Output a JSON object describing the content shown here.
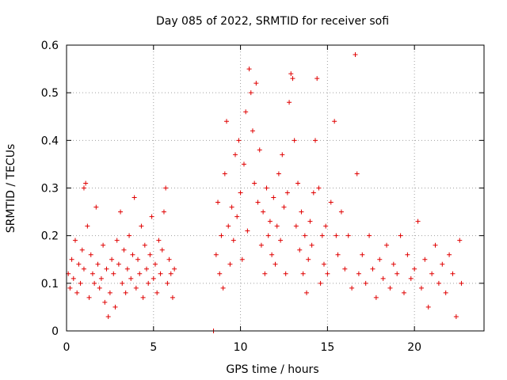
{
  "chart_data": {
    "type": "scatter",
    "title": "Day 085 of 2022, SRMTID for receiver sofi",
    "xlabel": "GPS time / hours",
    "ylabel": "SRMTID / TECUs",
    "xlim": [
      0,
      24
    ],
    "ylim": [
      0,
      0.6
    ],
    "xticks": [
      0,
      5,
      10,
      15,
      20
    ],
    "xtick_labels": [
      "0",
      "5",
      "10",
      "15",
      "20"
    ],
    "yticks": [
      0,
      0.1,
      0.2,
      0.3,
      0.4,
      0.5,
      0.6
    ],
    "ytick_labels": [
      "0",
      "0.1",
      "0.2",
      "0.3",
      "0.4",
      "0.5",
      "0.6"
    ],
    "grid": true,
    "marker": "+",
    "color": "#e00000",
    "series": [
      {
        "name": "SRMTID",
        "points": [
          [
            0.1,
            0.12
          ],
          [
            0.2,
            0.09
          ],
          [
            0.3,
            0.15
          ],
          [
            0.4,
            0.11
          ],
          [
            0.5,
            0.19
          ],
          [
            0.6,
            0.08
          ],
          [
            0.7,
            0.14
          ],
          [
            0.8,
            0.1
          ],
          [
            0.9,
            0.17
          ],
          [
            1.0,
            0.13
          ],
          [
            1.0,
            0.3
          ],
          [
            1.1,
            0.31
          ],
          [
            1.2,
            0.22
          ],
          [
            1.3,
            0.07
          ],
          [
            1.4,
            0.16
          ],
          [
            1.5,
            0.12
          ],
          [
            1.6,
            0.1
          ],
          [
            1.7,
            0.26
          ],
          [
            1.8,
            0.14
          ],
          [
            1.9,
            0.09
          ],
          [
            2.0,
            0.11
          ],
          [
            2.1,
            0.18
          ],
          [
            2.2,
            0.06
          ],
          [
            2.3,
            0.13
          ],
          [
            2.4,
            0.03
          ],
          [
            2.5,
            0.08
          ],
          [
            2.6,
            0.15
          ],
          [
            2.7,
            0.12
          ],
          [
            2.8,
            0.05
          ],
          [
            2.9,
            0.19
          ],
          [
            3.0,
            0.14
          ],
          [
            3.1,
            0.25
          ],
          [
            3.2,
            0.1
          ],
          [
            3.3,
            0.17
          ],
          [
            3.4,
            0.08
          ],
          [
            3.5,
            0.13
          ],
          [
            3.6,
            0.2
          ],
          [
            3.7,
            0.11
          ],
          [
            3.8,
            0.16
          ],
          [
            3.9,
            0.28
          ],
          [
            4.0,
            0.09
          ],
          [
            4.1,
            0.15
          ],
          [
            4.2,
            0.12
          ],
          [
            4.3,
            0.22
          ],
          [
            4.4,
            0.07
          ],
          [
            4.5,
            0.18
          ],
          [
            4.6,
            0.13
          ],
          [
            4.7,
            0.1
          ],
          [
            4.8,
            0.16
          ],
          [
            4.9,
            0.24
          ],
          [
            5.0,
            0.11
          ],
          [
            5.1,
            0.14
          ],
          [
            5.2,
            0.08
          ],
          [
            5.3,
            0.19
          ],
          [
            5.4,
            0.12
          ],
          [
            5.5,
            0.17
          ],
          [
            5.6,
            0.25
          ],
          [
            5.7,
            0.3
          ],
          [
            5.8,
            0.1
          ],
          [
            5.9,
            0.15
          ],
          [
            6.0,
            0.12
          ],
          [
            6.1,
            0.07
          ],
          [
            6.2,
            0.13
          ],
          [
            8.45,
            0.0
          ],
          [
            8.6,
            0.16
          ],
          [
            8.7,
            0.27
          ],
          [
            8.8,
            0.12
          ],
          [
            8.9,
            0.2
          ],
          [
            9.0,
            0.09
          ],
          [
            9.1,
            0.33
          ],
          [
            9.2,
            0.44
          ],
          [
            9.3,
            0.22
          ],
          [
            9.4,
            0.14
          ],
          [
            9.5,
            0.26
          ],
          [
            9.6,
            0.19
          ],
          [
            9.7,
            0.37
          ],
          [
            9.8,
            0.24
          ],
          [
            9.9,
            0.4
          ],
          [
            10.0,
            0.29
          ],
          [
            10.1,
            0.15
          ],
          [
            10.2,
            0.35
          ],
          [
            10.3,
            0.46
          ],
          [
            10.4,
            0.21
          ],
          [
            10.5,
            0.55
          ],
          [
            10.6,
            0.5
          ],
          [
            10.7,
            0.42
          ],
          [
            10.8,
            0.31
          ],
          [
            10.9,
            0.52
          ],
          [
            11.0,
            0.27
          ],
          [
            11.1,
            0.38
          ],
          [
            11.2,
            0.18
          ],
          [
            11.3,
            0.25
          ],
          [
            11.4,
            0.12
          ],
          [
            11.5,
            0.3
          ],
          [
            11.6,
            0.2
          ],
          [
            11.7,
            0.23
          ],
          [
            11.8,
            0.16
          ],
          [
            11.9,
            0.28
          ],
          [
            12.0,
            0.14
          ],
          [
            12.1,
            0.22
          ],
          [
            12.2,
            0.33
          ],
          [
            12.3,
            0.19
          ],
          [
            12.4,
            0.37
          ],
          [
            12.5,
            0.26
          ],
          [
            12.6,
            0.12
          ],
          [
            12.7,
            0.29
          ],
          [
            12.8,
            0.48
          ],
          [
            12.9,
            0.54
          ],
          [
            13.0,
            0.53
          ],
          [
            13.1,
            0.4
          ],
          [
            13.2,
            0.22
          ],
          [
            13.3,
            0.31
          ],
          [
            13.4,
            0.17
          ],
          [
            13.5,
            0.25
          ],
          [
            13.6,
            0.12
          ],
          [
            13.7,
            0.2
          ],
          [
            13.8,
            0.08
          ],
          [
            13.9,
            0.15
          ],
          [
            14.0,
            0.23
          ],
          [
            14.1,
            0.18
          ],
          [
            14.2,
            0.29
          ],
          [
            14.3,
            0.4
          ],
          [
            14.4,
            0.53
          ],
          [
            14.5,
            0.3
          ],
          [
            14.6,
            0.1
          ],
          [
            14.7,
            0.2
          ],
          [
            14.8,
            0.14
          ],
          [
            14.9,
            0.22
          ],
          [
            15.0,
            0.12
          ],
          [
            15.2,
            0.27
          ],
          [
            15.4,
            0.44
          ],
          [
            15.5,
            0.2
          ],
          [
            15.6,
            0.16
          ],
          [
            15.8,
            0.25
          ],
          [
            16.0,
            0.13
          ],
          [
            16.2,
            0.2
          ],
          [
            16.4,
            0.09
          ],
          [
            16.6,
            0.58
          ],
          [
            16.7,
            0.33
          ],
          [
            16.8,
            0.12
          ],
          [
            17.0,
            0.16
          ],
          [
            17.2,
            0.1
          ],
          [
            17.4,
            0.2
          ],
          [
            17.6,
            0.13
          ],
          [
            17.8,
            0.07
          ],
          [
            18.0,
            0.15
          ],
          [
            18.2,
            0.11
          ],
          [
            18.4,
            0.18
          ],
          [
            18.6,
            0.09
          ],
          [
            18.8,
            0.14
          ],
          [
            19.0,
            0.12
          ],
          [
            19.2,
            0.2
          ],
          [
            19.4,
            0.08
          ],
          [
            19.6,
            0.16
          ],
          [
            19.8,
            0.11
          ],
          [
            20.0,
            0.13
          ],
          [
            20.2,
            0.23
          ],
          [
            20.4,
            0.09
          ],
          [
            20.6,
            0.15
          ],
          [
            20.8,
            0.05
          ],
          [
            21.0,
            0.12
          ],
          [
            21.2,
            0.18
          ],
          [
            21.4,
            0.1
          ],
          [
            21.6,
            0.14
          ],
          [
            21.8,
            0.08
          ],
          [
            22.0,
            0.16
          ],
          [
            22.2,
            0.12
          ],
          [
            22.4,
            0.03
          ],
          [
            22.6,
            0.19
          ],
          [
            22.7,
            0.1
          ]
        ]
      }
    ]
  }
}
